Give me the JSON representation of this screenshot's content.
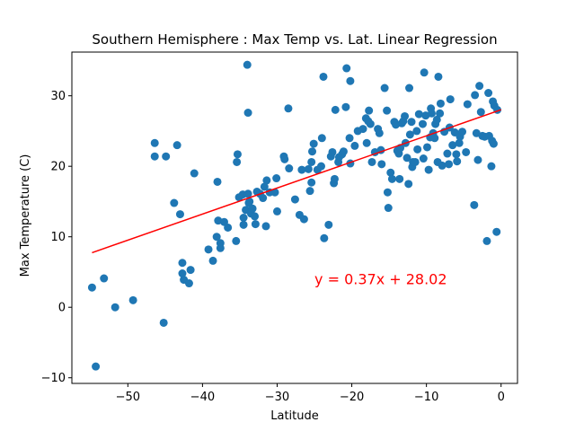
{
  "chart_data": {
    "type": "scatter",
    "title": "Southern Hemisphere : Max Temp vs. Lat. Linear Regression",
    "xlabel": "Latitude",
    "ylabel": "Max Temperature (C)",
    "xlim": [
      -57.5,
      2.2
    ],
    "ylim": [
      -10.8,
      36.2
    ],
    "xticks": [
      -50,
      -40,
      -30,
      -20,
      -10,
      0
    ],
    "yticks": [
      -10,
      0,
      10,
      20,
      30
    ],
    "grid": false,
    "point_color": "#1f77b4",
    "regression": {
      "slope": 0.37,
      "intercept": 28.02,
      "x_range": [
        -54.8,
        0
      ],
      "color": "#ff0000",
      "equation_label": "y = 0.37x + 28.02",
      "label_position_data": [
        -25,
        3.3
      ]
    },
    "points": [
      [
        -54.8,
        2.8
      ],
      [
        -54.3,
        -8.4
      ],
      [
        -53.2,
        4.1
      ],
      [
        -51.7,
        0.0
      ],
      [
        -49.3,
        1.0
      ],
      [
        -46.4,
        23.3
      ],
      [
        -46.4,
        21.4
      ],
      [
        -45.2,
        -2.2
      ],
      [
        -44.9,
        21.4
      ],
      [
        -43.8,
        14.8
      ],
      [
        -43.4,
        23.0
      ],
      [
        -43.0,
        13.2
      ],
      [
        -42.7,
        6.3
      ],
      [
        -42.7,
        4.8
      ],
      [
        -42.5,
        3.9
      ],
      [
        -41.8,
        3.4
      ],
      [
        -41.6,
        5.3
      ],
      [
        -41.1,
        19.0
      ],
      [
        -39.2,
        8.2
      ],
      [
        -38.6,
        6.6
      ],
      [
        -38.1,
        10.0
      ],
      [
        -38.0,
        17.8
      ],
      [
        -37.9,
        12.3
      ],
      [
        -37.6,
        9.1
      ],
      [
        -37.6,
        8.4
      ],
      [
        -37.1,
        12.1
      ],
      [
        -36.6,
        11.3
      ],
      [
        -35.5,
        9.4
      ],
      [
        -35.4,
        20.6
      ],
      [
        -35.3,
        21.7
      ],
      [
        -35.1,
        15.6
      ],
      [
        -34.6,
        16.0
      ],
      [
        -34.5,
        11.7
      ],
      [
        -34.5,
        12.7
      ],
      [
        -34.2,
        13.8
      ],
      [
        -34.0,
        34.4
      ],
      [
        -33.9,
        27.6
      ],
      [
        -33.9,
        16.1
      ],
      [
        -33.8,
        14.8
      ],
      [
        -33.7,
        15.0
      ],
      [
        -33.5,
        13.3
      ],
      [
        -33.3,
        14.0
      ],
      [
        -33.0,
        12.9
      ],
      [
        -32.9,
        11.8
      ],
      [
        -32.7,
        16.4
      ],
      [
        -32.3,
        16.1
      ],
      [
        -31.9,
        15.5
      ],
      [
        -31.7,
        17.1
      ],
      [
        -31.5,
        11.5
      ],
      [
        -31.4,
        18.0
      ],
      [
        -31.0,
        16.3
      ],
      [
        -30.3,
        16.3
      ],
      [
        -30.1,
        18.3
      ],
      [
        -30.0,
        13.6
      ],
      [
        -29.1,
        21.4
      ],
      [
        -29.0,
        21.0
      ],
      [
        -28.5,
        28.2
      ],
      [
        -28.4,
        19.7
      ],
      [
        -27.6,
        15.3
      ],
      [
        -27.0,
        13.1
      ],
      [
        -26.7,
        19.5
      ],
      [
        -26.4,
        12.5
      ],
      [
        -25.8,
        19.6
      ],
      [
        -25.6,
        16.5
      ],
      [
        -25.4,
        17.7
      ],
      [
        -25.4,
        20.6
      ],
      [
        -25.3,
        22.1
      ],
      [
        -25.1,
        23.2
      ],
      [
        -24.6,
        19.5
      ],
      [
        -24.1,
        20.0
      ],
      [
        -24.0,
        24.0
      ],
      [
        -23.8,
        32.7
      ],
      [
        -23.7,
        9.8
      ],
      [
        -23.1,
        11.7
      ],
      [
        -22.8,
        21.4
      ],
      [
        -22.6,
        22.0
      ],
      [
        -22.4,
        17.6
      ],
      [
        -22.3,
        18.2
      ],
      [
        -22.2,
        28.0
      ],
      [
        -21.8,
        20.6
      ],
      [
        -21.7,
        21.3
      ],
      [
        -21.3,
        21.7
      ],
      [
        -21.1,
        22.1
      ],
      [
        -20.8,
        28.4
      ],
      [
        -20.7,
        33.9
      ],
      [
        -20.3,
        24.0
      ],
      [
        -20.2,
        32.1
      ],
      [
        -20.2,
        20.4
      ],
      [
        -19.6,
        22.9
      ],
      [
        -19.2,
        25.0
      ],
      [
        -18.5,
        25.3
      ],
      [
        -18.1,
        26.8
      ],
      [
        -18.0,
        23.3
      ],
      [
        -17.8,
        26.4
      ],
      [
        -17.7,
        27.9
      ],
      [
        -17.5,
        26.0
      ],
      [
        -17.3,
        20.6
      ],
      [
        -16.9,
        22.0
      ],
      [
        -16.5,
        25.3
      ],
      [
        -16.3,
        24.7
      ],
      [
        -16.1,
        22.3
      ],
      [
        -16.0,
        20.3
      ],
      [
        -15.6,
        31.1
      ],
      [
        -15.3,
        27.9
      ],
      [
        -15.2,
        16.3
      ],
      [
        -15.1,
        14.1
      ],
      [
        -14.8,
        19.1
      ],
      [
        -14.6,
        18.2
      ],
      [
        -14.3,
        26.3
      ],
      [
        -14.1,
        25.9
      ],
      [
        -13.9,
        22.2
      ],
      [
        -13.7,
        21.8
      ],
      [
        -13.6,
        18.2
      ],
      [
        -13.5,
        22.6
      ],
      [
        -13.3,
        26.1
      ],
      [
        -13.1,
        26.4
      ],
      [
        -12.9,
        27.1
      ],
      [
        -12.8,
        23.3
      ],
      [
        -12.6,
        21.2
      ],
      [
        -12.4,
        17.5
      ],
      [
        -12.3,
        31.1
      ],
      [
        -12.2,
        24.5
      ],
      [
        -12.0,
        26.3
      ],
      [
        -11.9,
        19.9
      ],
      [
        -11.8,
        20.6
      ],
      [
        -11.5,
        20.6
      ],
      [
        -11.3,
        25.0
      ],
      [
        -11.2,
        22.4
      ],
      [
        -11.0,
        27.4
      ],
      [
        -10.5,
        26.0
      ],
      [
        -10.4,
        21.1
      ],
      [
        -10.3,
        33.3
      ],
      [
        -10.1,
        27.2
      ],
      [
        -9.9,
        22.7
      ],
      [
        -9.7,
        19.5
      ],
      [
        -9.5,
        24.1
      ],
      [
        -9.4,
        28.2
      ],
      [
        -9.3,
        27.5
      ],
      [
        -9.1,
        24.7
      ],
      [
        -8.9,
        24.0
      ],
      [
        -8.8,
        26.0
      ],
      [
        -8.6,
        26.6
      ],
      [
        -8.5,
        20.6
      ],
      [
        -8.4,
        32.7
      ],
      [
        -8.2,
        27.5
      ],
      [
        -8.1,
        28.9
      ],
      [
        -7.9,
        20.1
      ],
      [
        -7.6,
        24.9
      ],
      [
        -7.2,
        21.8
      ],
      [
        -7.0,
        20.3
      ],
      [
        -6.9,
        25.5
      ],
      [
        -6.8,
        29.5
      ],
      [
        -6.5,
        23.0
      ],
      [
        -6.2,
        24.8
      ],
      [
        -6.0,
        21.7
      ],
      [
        -5.9,
        20.7
      ],
      [
        -5.6,
        23.3
      ],
      [
        -5.5,
        24.2
      ],
      [
        -5.2,
        24.9
      ],
      [
        -4.7,
        22.0
      ],
      [
        -4.5,
        28.8
      ],
      [
        -3.6,
        14.5
      ],
      [
        -3.5,
        30.1
      ],
      [
        -3.3,
        24.7
      ],
      [
        -3.1,
        20.9
      ],
      [
        -2.9,
        31.4
      ],
      [
        -2.7,
        27.7
      ],
      [
        -2.5,
        24.3
      ],
      [
        -2.2,
        24.2
      ],
      [
        -1.9,
        9.4
      ],
      [
        -1.7,
        30.4
      ],
      [
        -1.6,
        24.3
      ],
      [
        -1.3,
        20.0
      ],
      [
        -1.2,
        23.6
      ],
      [
        -1.1,
        29.2
      ],
      [
        -1.0,
        23.2
      ],
      [
        -0.9,
        28.6
      ],
      [
        -0.6,
        10.7
      ],
      [
        -0.5,
        28.0
      ]
    ]
  }
}
